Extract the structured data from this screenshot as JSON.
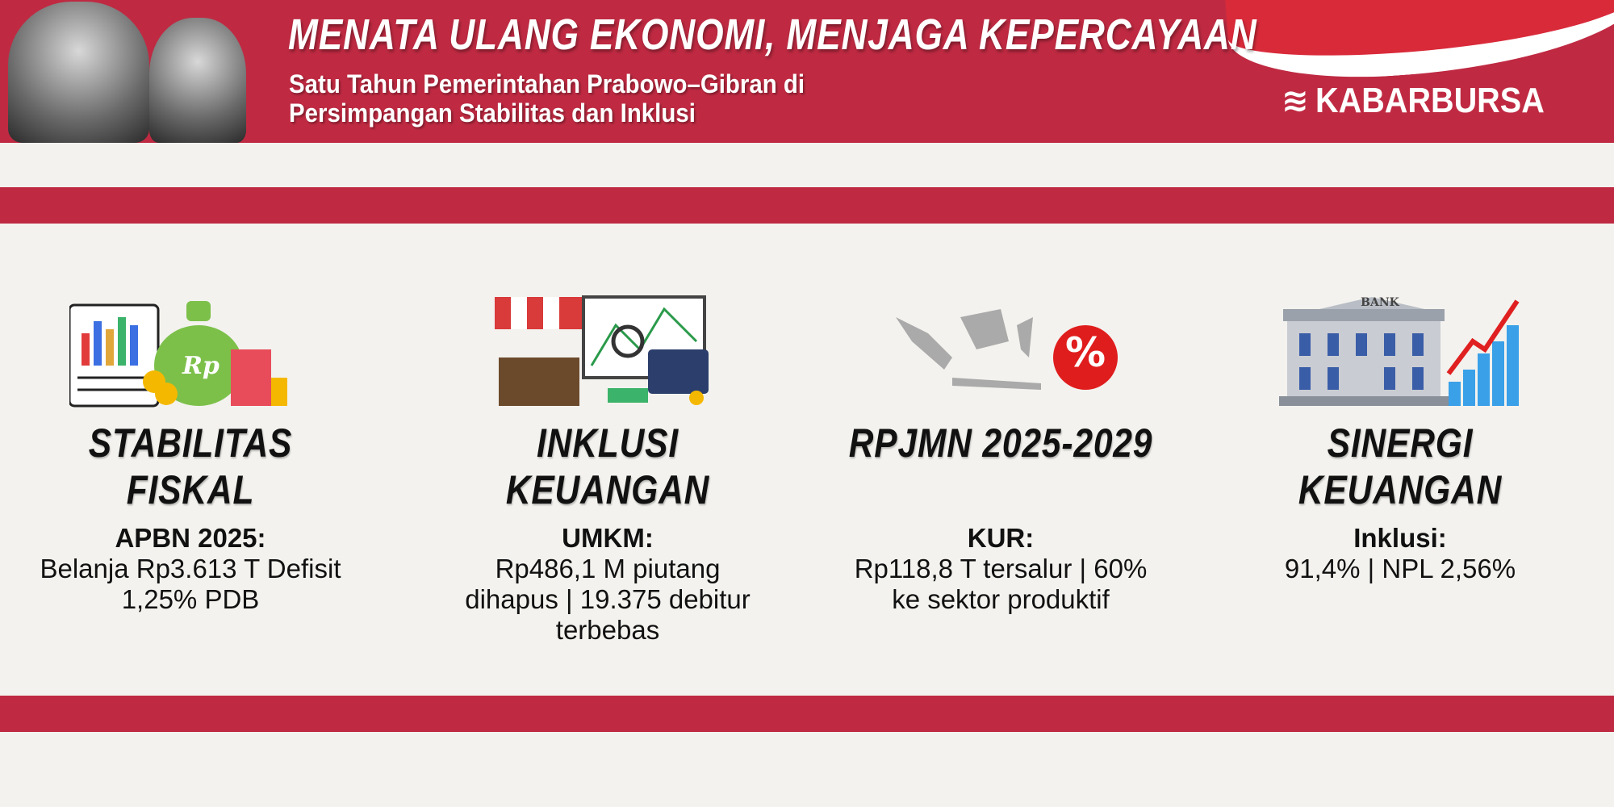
{
  "header": {
    "title": "MENATA ULANG EKONOMI, MENJAGA KEPERCAYAAN",
    "subtitle_line1": "Satu Tahun Pemerintahan Prabowo–Gibran di",
    "subtitle_line2": "Persimpangan Stabilitas dan Inklusi",
    "logo": "KABARBURSA"
  },
  "colors": {
    "brand_red": "#bf2a42",
    "background": "#f3f2ee"
  },
  "pillars": [
    {
      "title": "STABILITAS FISKAL",
      "icon": "budget-money-bag-icon",
      "stat_head": "APBN 2025:",
      "stat_body": "Belanja Rp3.613 T Defisit 1,25% PDB"
    },
    {
      "title": "INKLUSI KEUANGAN",
      "icon": "market-stall-chart-icon",
      "stat_head": "UMKM:",
      "stat_body": "Rp486,1 M piutang dihapus | 19.375 debitur terbebas"
    },
    {
      "title": "RPJMN 2025-2029",
      "icon": "indonesia-map-percent-icon",
      "stat_head": "KUR:",
      "stat_body": "Rp118,8 T tersalur | 60% ke sektor produktif",
      "badge": "%"
    },
    {
      "title": "SINERGI KEUANGAN",
      "icon": "bank-growth-chart-icon",
      "stat_head": "Inklusi:",
      "stat_body": "91,4% | NPL 2,56%",
      "bank_label": "BANK"
    }
  ]
}
